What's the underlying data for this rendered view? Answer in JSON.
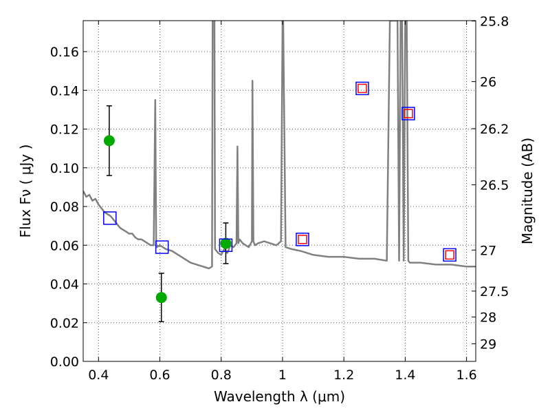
{
  "chart_data": {
    "type": "scatter",
    "xlabel": "Wavelength  λ (μm)",
    "ylabel": "Flux  Fν  ( μJy )",
    "ylabel_right": "Magnitude (AB)",
    "xlim": [
      0.35,
      1.63
    ],
    "ylim": [
      0.0,
      0.176
    ],
    "grid": true,
    "x_ticks": [
      0.4,
      0.6,
      0.8,
      1.0,
      1.2,
      1.4,
      1.6
    ],
    "x_tick_labels": [
      "0.4",
      "0.6",
      "0.8",
      "1",
      "1.2",
      "1.4",
      "1.6"
    ],
    "y_ticks": [
      0.0,
      0.02,
      0.04,
      0.06,
      0.08,
      0.1,
      0.12,
      0.14,
      0.16
    ],
    "y_tick_labels": [
      "0.00",
      "0.02",
      "0.04",
      "0.06",
      "0.08",
      "0.10",
      "0.12",
      "0.14",
      "0.16"
    ],
    "right_ticks": [
      {
        "label": "25.8",
        "flux": 0.1758
      },
      {
        "label": "26",
        "flux": 0.1445
      },
      {
        "label": "26.2",
        "flux": 0.1202
      },
      {
        "label": "26.5",
        "flux": 0.0912
      },
      {
        "label": "27",
        "flux": 0.0575
      },
      {
        "label": "27.5",
        "flux": 0.0363
      },
      {
        "label": "28",
        "flux": 0.0229
      },
      {
        "label": "29",
        "flux": 0.0091
      }
    ],
    "series": [
      {
        "kind": "line",
        "color": "#808080",
        "x": [
          0.35,
          0.36,
          0.37,
          0.38,
          0.39,
          0.4,
          0.41,
          0.42,
          0.43,
          0.44,
          0.45,
          0.46,
          0.47,
          0.48,
          0.49,
          0.5,
          0.51,
          0.52,
          0.53,
          0.54,
          0.55,
          0.56,
          0.57,
          0.58,
          0.585,
          0.588,
          0.59,
          0.6,
          0.62,
          0.64,
          0.66,
          0.68,
          0.7,
          0.72,
          0.74,
          0.76,
          0.77,
          0.772,
          0.775,
          0.778,
          0.78,
          0.79,
          0.8,
          0.81,
          0.82,
          0.83,
          0.84,
          0.85,
          0.853,
          0.856,
          0.86,
          0.87,
          0.88,
          0.89,
          0.9,
          0.902,
          0.905,
          0.91,
          0.92,
          0.94,
          0.96,
          0.98,
          0.995,
          1.0,
          1.002,
          1.01,
          1.03,
          1.06,
          1.1,
          1.15,
          1.2,
          1.25,
          1.3,
          1.34,
          1.35,
          1.352,
          1.36,
          1.375,
          1.38,
          1.385,
          1.39,
          1.395,
          1.4,
          1.405,
          1.41,
          1.415,
          1.42,
          1.45,
          1.5,
          1.55,
          1.6,
          1.63
        ],
        "y": [
          0.088,
          0.085,
          0.086,
          0.083,
          0.084,
          0.081,
          0.079,
          0.077,
          0.076,
          0.075,
          0.073,
          0.071,
          0.069,
          0.068,
          0.067,
          0.066,
          0.066,
          0.064,
          0.063,
          0.063,
          0.062,
          0.061,
          0.06,
          0.06,
          0.135,
          0.061,
          0.059,
          0.06,
          0.058,
          0.057,
          0.055,
          0.053,
          0.051,
          0.05,
          0.049,
          0.048,
          0.049,
          0.176,
          0.176,
          0.176,
          0.058,
          0.056,
          0.055,
          0.058,
          0.056,
          0.06,
          0.059,
          0.061,
          0.111,
          0.061,
          0.063,
          0.061,
          0.06,
          0.059,
          0.062,
          0.145,
          0.062,
          0.06,
          0.061,
          0.062,
          0.061,
          0.06,
          0.062,
          0.176,
          0.176,
          0.059,
          0.058,
          0.057,
          0.055,
          0.054,
          0.054,
          0.053,
          0.053,
          0.052,
          0.176,
          0.176,
          0.176,
          0.176,
          0.052,
          0.176,
          0.176,
          0.052,
          0.176,
          0.176,
          0.052,
          0.051,
          0.051,
          0.051,
          0.05,
          0.05,
          0.049,
          0.049
        ]
      },
      {
        "kind": "points",
        "color": "#00aa00",
        "x": [
          0.435,
          0.605,
          0.815
        ],
        "y": [
          0.114,
          0.033,
          0.061
        ],
        "err_low": [
          0.096,
          0.0205,
          0.0505
        ],
        "err_high": [
          0.132,
          0.0455,
          0.0715
        ]
      },
      {
        "kind": "squares",
        "color": "#0000ff",
        "x": [
          0.437,
          0.607,
          0.815,
          1.065,
          1.26,
          1.41,
          1.545
        ],
        "y": [
          0.074,
          0.059,
          0.06,
          0.063,
          0.141,
          0.128,
          0.055
        ]
      },
      {
        "kind": "squares",
        "color": "#ff0000",
        "x": [
          1.065,
          1.26,
          1.41,
          1.545
        ],
        "y": [
          0.063,
          0.141,
          0.128,
          0.055
        ]
      }
    ]
  }
}
